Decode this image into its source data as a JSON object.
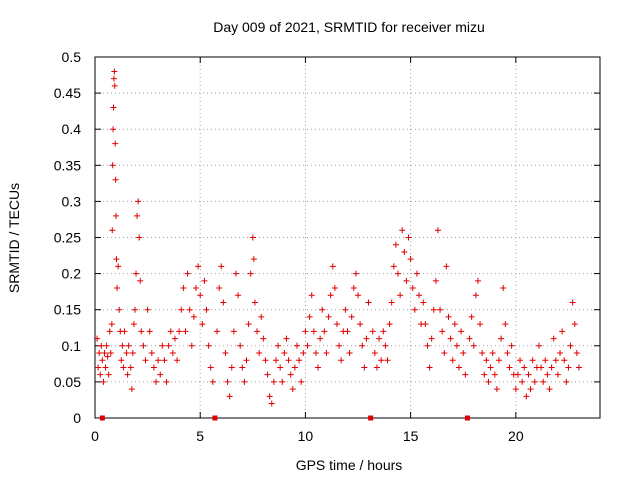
{
  "chart_data": {
    "type": "scatter",
    "title": "Day 009 of 2021, SRMTID for receiver mizu",
    "xlabel": "GPS time / hours",
    "ylabel": "SRMTID / TECUs",
    "xlim": [
      0,
      24
    ],
    "ylim": [
      0,
      0.5
    ],
    "grid": true,
    "x_ticks": [
      0,
      5,
      10,
      15,
      20
    ],
    "x_tick_labels": [
      "0",
      "5",
      "10",
      "15",
      "20"
    ],
    "y_ticks": [
      0,
      0.05,
      0.1,
      0.15,
      0.2,
      0.25,
      0.3,
      0.35,
      0.4,
      0.45,
      0.5
    ],
    "y_tick_labels": [
      "0",
      "0.05",
      "0.1",
      "0.15",
      "0.2",
      "0.25",
      "0.3",
      "0.35",
      "0.4",
      "0.45",
      "0.5"
    ],
    "marker_symbol": "+",
    "color": "#e00000",
    "data_gap_markers_x": [
      0.35,
      5.7,
      13.1,
      17.7
    ],
    "series": [
      {
        "name": "SRMTID",
        "points": [
          [
            0.1,
            0.11
          ],
          [
            0.15,
            0.07
          ],
          [
            0.2,
            0.09
          ],
          [
            0.25,
            0.06
          ],
          [
            0.3,
            0.1
          ],
          [
            0.35,
            0.08
          ],
          [
            0.4,
            0.05
          ],
          [
            0.45,
            0.09
          ],
          [
            0.5,
            0.07
          ],
          [
            0.55,
            0.1
          ],
          [
            0.6,
            0.085
          ],
          [
            0.65,
            0.06
          ],
          [
            0.7,
            0.12
          ],
          [
            0.75,
            0.09
          ],
          [
            0.8,
            0.13
          ],
          [
            0.82,
            0.26
          ],
          [
            0.84,
            0.35
          ],
          [
            0.86,
            0.4
          ],
          [
            0.88,
            0.43
          ],
          [
            0.9,
            0.47
          ],
          [
            0.92,
            0.48
          ],
          [
            0.94,
            0.46
          ],
          [
            0.96,
            0.38
          ],
          [
            0.98,
            0.33
          ],
          [
            1.0,
            0.28
          ],
          [
            1.02,
            0.22
          ],
          [
            1.05,
            0.18
          ],
          [
            1.1,
            0.21
          ],
          [
            1.15,
            0.15
          ],
          [
            1.2,
            0.12
          ],
          [
            1.25,
            0.08
          ],
          [
            1.3,
            0.1
          ],
          [
            1.35,
            0.07
          ],
          [
            1.4,
            0.12
          ],
          [
            1.5,
            0.09
          ],
          [
            1.55,
            0.06
          ],
          [
            1.6,
            0.1
          ],
          [
            1.7,
            0.07
          ],
          [
            1.75,
            0.04
          ],
          [
            1.8,
            0.09
          ],
          [
            1.85,
            0.13
          ],
          [
            1.9,
            0.15
          ],
          [
            1.95,
            0.2
          ],
          [
            2.0,
            0.28
          ],
          [
            2.05,
            0.3
          ],
          [
            2.1,
            0.25
          ],
          [
            2.15,
            0.19
          ],
          [
            2.2,
            0.12
          ],
          [
            2.3,
            0.1
          ],
          [
            2.4,
            0.08
          ],
          [
            2.5,
            0.15
          ],
          [
            2.6,
            0.12
          ],
          [
            2.7,
            0.09
          ],
          [
            2.8,
            0.07
          ],
          [
            2.9,
            0.05
          ],
          [
            3.0,
            0.08
          ],
          [
            3.1,
            0.06
          ],
          [
            3.2,
            0.1
          ],
          [
            3.3,
            0.08
          ],
          [
            3.4,
            0.05
          ],
          [
            3.5,
            0.1
          ],
          [
            3.6,
            0.12
          ],
          [
            3.7,
            0.09
          ],
          [
            3.8,
            0.11
          ],
          [
            3.9,
            0.08
          ],
          [
            4.0,
            0.12
          ],
          [
            4.1,
            0.15
          ],
          [
            4.2,
            0.18
          ],
          [
            4.3,
            0.12
          ],
          [
            4.4,
            0.2
          ],
          [
            4.5,
            0.15
          ],
          [
            4.6,
            0.1
          ],
          [
            4.7,
            0.14
          ],
          [
            4.8,
            0.18
          ],
          [
            4.9,
            0.21
          ],
          [
            5.0,
            0.17
          ],
          [
            5.1,
            0.13
          ],
          [
            5.2,
            0.19
          ],
          [
            5.3,
            0.15
          ],
          [
            5.4,
            0.1
          ],
          [
            5.5,
            0.07
          ],
          [
            5.6,
            0.05
          ],
          [
            5.8,
            0.12
          ],
          [
            5.9,
            0.18
          ],
          [
            6.0,
            0.21
          ],
          [
            6.1,
            0.16
          ],
          [
            6.2,
            0.09
          ],
          [
            6.3,
            0.05
          ],
          [
            6.4,
            0.03
          ],
          [
            6.5,
            0.07
          ],
          [
            6.6,
            0.12
          ],
          [
            6.7,
            0.2
          ],
          [
            6.8,
            0.17
          ],
          [
            6.9,
            0.1
          ],
          [
            7.0,
            0.07
          ],
          [
            7.1,
            0.05
          ],
          [
            7.2,
            0.08
          ],
          [
            7.3,
            0.13
          ],
          [
            7.4,
            0.2
          ],
          [
            7.5,
            0.25
          ],
          [
            7.55,
            0.22
          ],
          [
            7.6,
            0.16
          ],
          [
            7.7,
            0.12
          ],
          [
            7.8,
            0.09
          ],
          [
            7.9,
            0.14
          ],
          [
            8.0,
            0.11
          ],
          [
            8.1,
            0.08
          ],
          [
            8.2,
            0.06
          ],
          [
            8.3,
            0.03
          ],
          [
            8.4,
            0.02
          ],
          [
            8.5,
            0.05
          ],
          [
            8.6,
            0.08
          ],
          [
            8.7,
            0.1
          ],
          [
            8.8,
            0.07
          ],
          [
            8.9,
            0.05
          ],
          [
            9.0,
            0.09
          ],
          [
            9.1,
            0.11
          ],
          [
            9.2,
            0.08
          ],
          [
            9.3,
            0.06
          ],
          [
            9.4,
            0.04
          ],
          [
            9.5,
            0.07
          ],
          [
            9.6,
            0.1
          ],
          [
            9.7,
            0.08
          ],
          [
            9.8,
            0.05
          ],
          [
            9.9,
            0.09
          ],
          [
            10.0,
            0.12
          ],
          [
            10.1,
            0.1
          ],
          [
            10.2,
            0.14
          ],
          [
            10.3,
            0.17
          ],
          [
            10.4,
            0.12
          ],
          [
            10.5,
            0.09
          ],
          [
            10.6,
            0.07
          ],
          [
            10.7,
            0.11
          ],
          [
            10.8,
            0.15
          ],
          [
            10.9,
            0.12
          ],
          [
            11.0,
            0.09
          ],
          [
            11.1,
            0.14
          ],
          [
            11.2,
            0.17
          ],
          [
            11.3,
            0.21
          ],
          [
            11.4,
            0.18
          ],
          [
            11.5,
            0.13
          ],
          [
            11.6,
            0.1
          ],
          [
            11.7,
            0.08
          ],
          [
            11.8,
            0.12
          ],
          [
            11.9,
            0.15
          ],
          [
            12.0,
            0.12
          ],
          [
            12.1,
            0.09
          ],
          [
            12.2,
            0.14
          ],
          [
            12.3,
            0.18
          ],
          [
            12.4,
            0.2
          ],
          [
            12.5,
            0.17
          ],
          [
            12.6,
            0.13
          ],
          [
            12.7,
            0.1
          ],
          [
            12.8,
            0.07
          ],
          [
            12.9,
            0.11
          ],
          [
            13.0,
            0.16
          ],
          [
            13.2,
            0.12
          ],
          [
            13.3,
            0.09
          ],
          [
            13.4,
            0.07
          ],
          [
            13.5,
            0.11
          ],
          [
            13.6,
            0.08
          ],
          [
            13.7,
            0.12
          ],
          [
            13.8,
            0.1
          ],
          [
            13.9,
            0.08
          ],
          [
            14.0,
            0.13
          ],
          [
            14.1,
            0.16
          ],
          [
            14.2,
            0.21
          ],
          [
            14.3,
            0.24
          ],
          [
            14.4,
            0.2
          ],
          [
            14.5,
            0.17
          ],
          [
            14.6,
            0.26
          ],
          [
            14.7,
            0.23
          ],
          [
            14.8,
            0.19
          ],
          [
            14.9,
            0.25
          ],
          [
            15.0,
            0.22
          ],
          [
            15.1,
            0.18
          ],
          [
            15.2,
            0.15
          ],
          [
            15.3,
            0.2
          ],
          [
            15.4,
            0.17
          ],
          [
            15.5,
            0.13
          ],
          [
            15.6,
            0.16
          ],
          [
            15.7,
            0.13
          ],
          [
            15.8,
            0.1
          ],
          [
            15.9,
            0.07
          ],
          [
            16.0,
            0.11
          ],
          [
            16.1,
            0.15
          ],
          [
            16.2,
            0.19
          ],
          [
            16.3,
            0.26
          ],
          [
            16.4,
            0.15
          ],
          [
            16.5,
            0.12
          ],
          [
            16.6,
            0.09
          ],
          [
            16.7,
            0.21
          ],
          [
            16.8,
            0.14
          ],
          [
            16.9,
            0.11
          ],
          [
            17.0,
            0.08
          ],
          [
            17.1,
            0.13
          ],
          [
            17.2,
            0.1
          ],
          [
            17.3,
            0.07
          ],
          [
            17.4,
            0.12
          ],
          [
            17.5,
            0.09
          ],
          [
            17.6,
            0.06
          ],
          [
            17.8,
            0.11
          ],
          [
            17.9,
            0.14
          ],
          [
            18.0,
            0.1
          ],
          [
            18.1,
            0.17
          ],
          [
            18.2,
            0.19
          ],
          [
            18.3,
            0.13
          ],
          [
            18.4,
            0.09
          ],
          [
            18.5,
            0.06
          ],
          [
            18.6,
            0.08
          ],
          [
            18.7,
            0.05
          ],
          [
            18.8,
            0.07
          ],
          [
            18.9,
            0.09
          ],
          [
            19.0,
            0.06
          ],
          [
            19.1,
            0.04
          ],
          [
            19.2,
            0.08
          ],
          [
            19.3,
            0.11
          ],
          [
            19.4,
            0.18
          ],
          [
            19.5,
            0.13
          ],
          [
            19.6,
            0.09
          ],
          [
            19.7,
            0.07
          ],
          [
            19.8,
            0.1
          ],
          [
            19.9,
            0.06
          ],
          [
            20.0,
            0.04
          ],
          [
            20.1,
            0.06
          ],
          [
            20.2,
            0.08
          ],
          [
            20.3,
            0.05
          ],
          [
            20.4,
            0.07
          ],
          [
            20.5,
            0.03
          ],
          [
            20.6,
            0.06
          ],
          [
            20.7,
            0.04
          ],
          [
            20.8,
            0.08
          ],
          [
            20.9,
            0.05
          ],
          [
            21.0,
            0.07
          ],
          [
            21.1,
            0.1
          ],
          [
            21.2,
            0.07
          ],
          [
            21.3,
            0.05
          ],
          [
            21.4,
            0.08
          ],
          [
            21.5,
            0.06
          ],
          [
            21.6,
            0.04
          ],
          [
            21.7,
            0.07
          ],
          [
            21.8,
            0.11
          ],
          [
            21.9,
            0.08
          ],
          [
            22.0,
            0.06
          ],
          [
            22.1,
            0.09
          ],
          [
            22.2,
            0.12
          ],
          [
            22.3,
            0.08
          ],
          [
            22.4,
            0.05
          ],
          [
            22.5,
            0.07
          ],
          [
            22.6,
            0.1
          ],
          [
            22.7,
            0.16
          ],
          [
            22.8,
            0.13
          ],
          [
            22.9,
            0.09
          ],
          [
            23.0,
            0.07
          ]
        ]
      }
    ]
  }
}
